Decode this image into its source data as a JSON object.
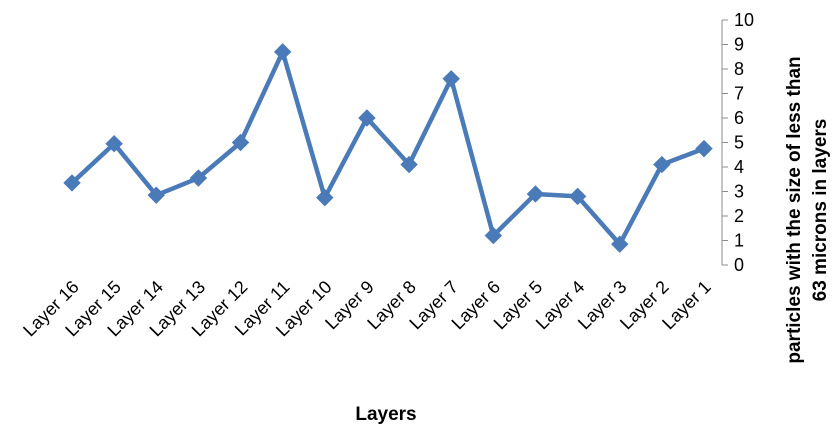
{
  "chart_data": {
    "type": "line",
    "title": "",
    "xlabel": "Layers",
    "ylabel_line1": "particles with the size of less than",
    "ylabel_line2": "63 microns in layers",
    "categories": [
      "Layer 16",
      "Layer 15",
      "Layer 14",
      "Layer 13",
      "Layer 12",
      "Layer 11",
      "Layer 10",
      "Layer 9",
      "Layer 8",
      "Layer 7",
      "Layer 6",
      "Layer 5",
      "Layer 4",
      "Layer 3",
      "Layer 2",
      "Layer 1"
    ],
    "series": [
      {
        "values": [
          3.35,
          4.95,
          2.85,
          3.55,
          5.0,
          8.7,
          2.75,
          6.0,
          4.1,
          7.6,
          1.2,
          2.9,
          2.8,
          0.85,
          4.1,
          4.75
        ],
        "color": "#4a7ab8",
        "marker": "diamond"
      }
    ],
    "ylim": [
      0,
      10
    ],
    "yticks": [
      "0",
      "1",
      "2",
      "3",
      "4",
      "5",
      "6",
      "7",
      "8",
      "9",
      "10"
    ],
    "y_axis_position": "right",
    "grid": false,
    "legend": "none"
  }
}
